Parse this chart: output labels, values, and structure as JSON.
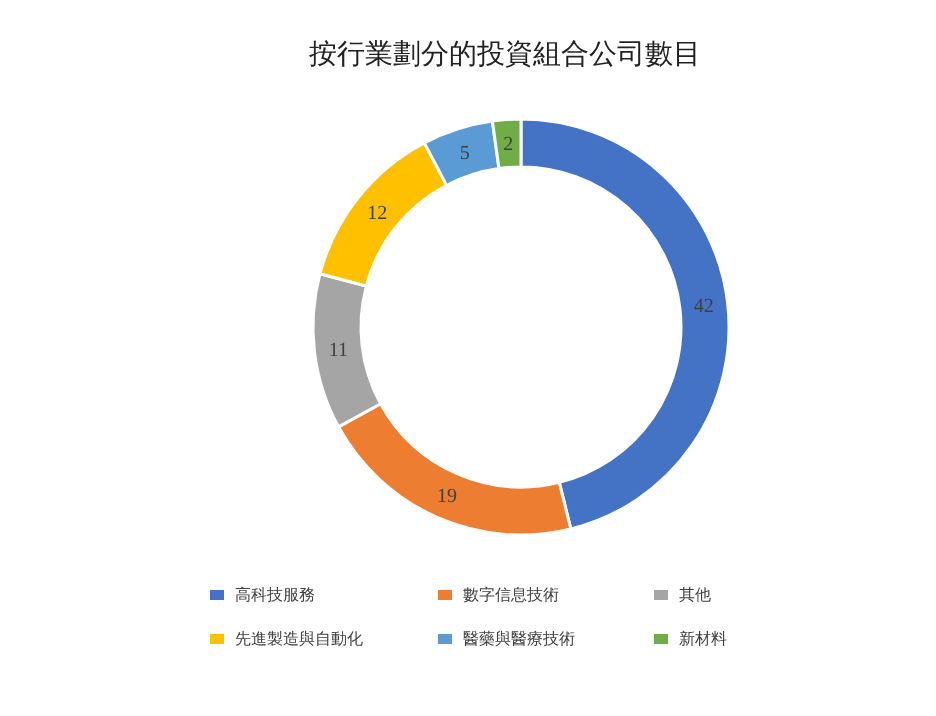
{
  "chart_data": {
    "type": "donut",
    "title": "按行業劃分的投資組合公司數目",
    "categories": [
      "高科技服務",
      "數字信息技術",
      "其他",
      "先進製造與自動化",
      "醫藥與醫療技術",
      "新材料"
    ],
    "values": [
      42,
      19,
      11,
      12,
      5,
      2
    ],
    "colors": [
      "#4472c4",
      "#ed7d31",
      "#a5a5a5",
      "#ffc000",
      "#5b9bd5",
      "#70ad47"
    ],
    "data_labels": true,
    "legend": "bottom"
  }
}
